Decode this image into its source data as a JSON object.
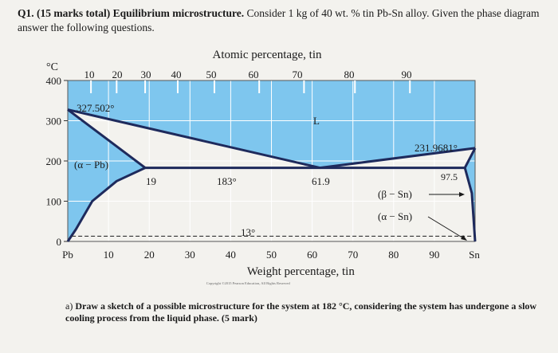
{
  "question": {
    "number": "Q1.",
    "marks": "(15 marks total)",
    "topic": "Equilibrium microstructure.",
    "text": "Consider 1 kg of 40 wt. % tin Pb-Sn alloy. Given the phase diagram answer the following questions."
  },
  "chart_data": {
    "type": "phase_diagram",
    "title": "Atomic percentage, tin",
    "xlabel": "Weight percentage, tin",
    "ylabel": "°C",
    "x_weight_ticks": [
      "Pb",
      "10",
      "20",
      "30",
      "40",
      "50",
      "60",
      "70",
      "80",
      "90",
      "Sn"
    ],
    "x_atomic_ticks": [
      "10",
      "20",
      "30",
      "40",
      "50",
      "60",
      "70",
      "80",
      "90"
    ],
    "y_ticks": [
      "400",
      "300",
      "200",
      "100",
      "0"
    ],
    "xlim": [
      0,
      100
    ],
    "ylim": [
      0,
      400
    ],
    "pb_melting_point": {
      "label": "327.502°",
      "temp": 327.5,
      "wt": 0
    },
    "sn_melting_point": {
      "label": "231.9681°",
      "temp": 231.97,
      "wt": 100
    },
    "eutectic": {
      "temp_label": "183°",
      "temp": 183,
      "composition_label": "61.9",
      "composition": 61.9
    },
    "alpha_max_solubility": {
      "label": "19",
      "wt": 19
    },
    "beta_max_solubility": {
      "label": "97.5",
      "wt": 97.5
    },
    "polymorphic_transition": {
      "label": "13°",
      "temp": 13
    },
    "liquidus_left": [
      [
        0,
        327.5
      ],
      [
        61.9,
        183
      ]
    ],
    "liquidus_right": [
      [
        61.9,
        183
      ],
      [
        100,
        231.97
      ]
    ],
    "solidus_alpha": [
      [
        0,
        327.5
      ],
      [
        19,
        183
      ]
    ],
    "solvus_alpha": [
      [
        19,
        183
      ],
      [
        12,
        150
      ],
      [
        6,
        100
      ],
      [
        2,
        30
      ],
      [
        0,
        0
      ]
    ],
    "solidus_beta": [
      [
        97.5,
        183
      ],
      [
        100,
        231.97
      ]
    ],
    "solvus_beta": [
      [
        97.5,
        183
      ],
      [
        99.2,
        120
      ],
      [
        99.8,
        30
      ],
      [
        100,
        0
      ]
    ],
    "region_labels": {
      "liquid": "L",
      "alpha": "(α − Pb)",
      "beta": "(β − Sn)",
      "alpha_sn": "(α − Sn)"
    },
    "copyright": "Copyright ©2015 Pearson Education, All Rights Reserved",
    "colors": {
      "fill": "#7ec6ee",
      "line": "#1e2a5c",
      "grid": "#ffffff",
      "bg": "#f3f2ee"
    }
  },
  "subquestion": {
    "letter": "a)",
    "text": "Draw a sketch of a possible microstructure for the system at 182 °C, considering the system has undergone a slow cooling process from the liquid phase.",
    "marks": "(5 mark)"
  }
}
